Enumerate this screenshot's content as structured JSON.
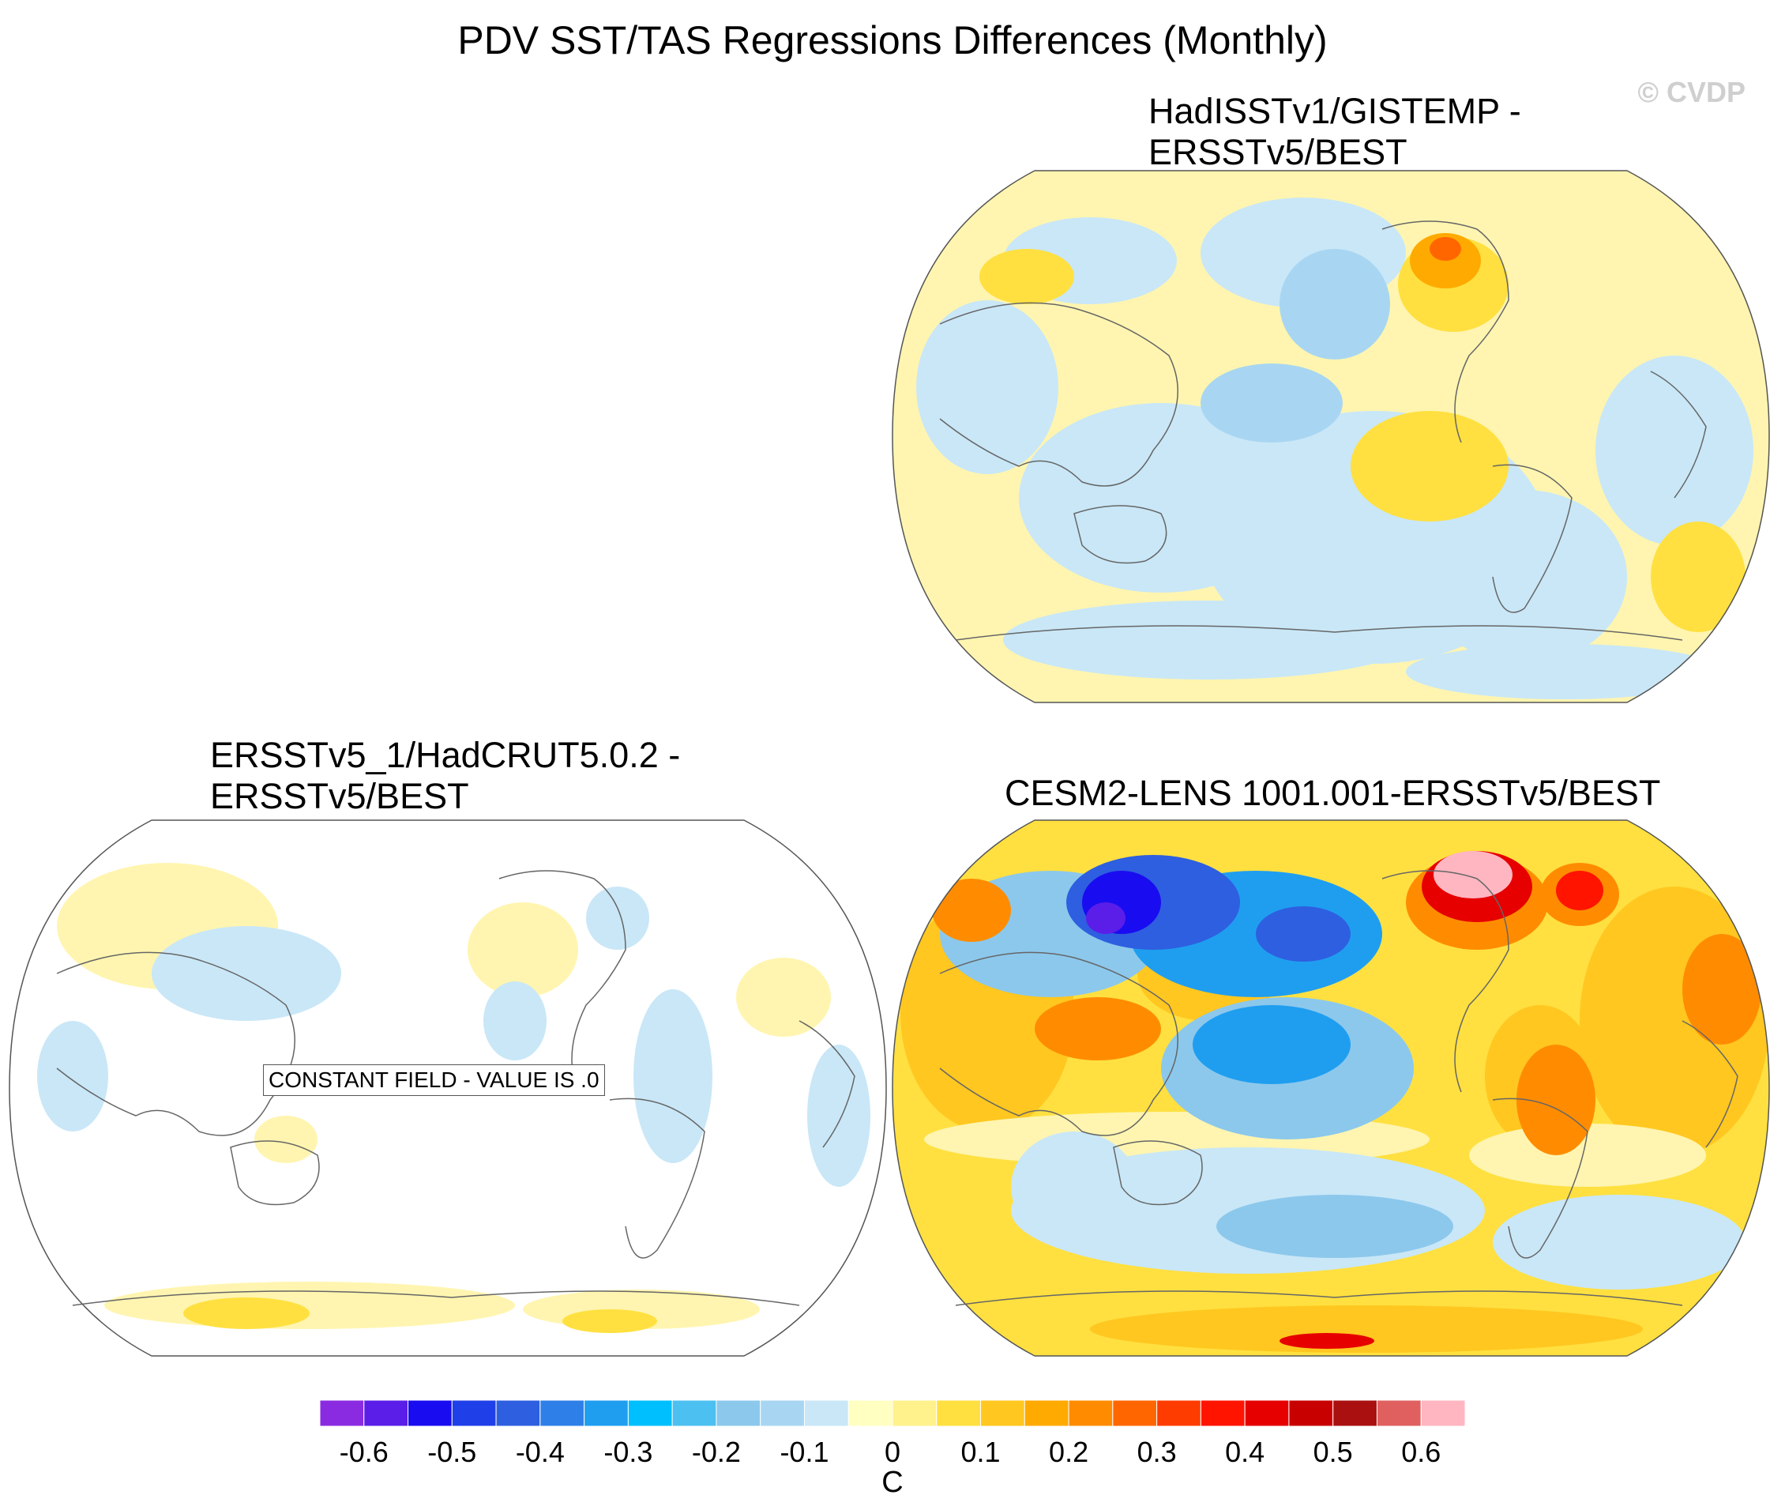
{
  "title": "PDV SST/TAS Regressions Differences (Monthly)",
  "watermark": "© CVDP",
  "panels": [
    {
      "id": "top-right",
      "title": "HadISSTv1/GISTEMP -\nERSSTv5/BEST",
      "style": "mixed-weak"
    },
    {
      "id": "bottom-left",
      "title": "ERSSTv5_1/HadCRUT5.0.2 -\nERSSTv5/BEST",
      "style": "sparse",
      "annotation": "CONSTANT FIELD - VALUE IS .0"
    },
    {
      "id": "bottom-right",
      "title": "CESM2-LENS 1001.001-ERSSTv5/BEST",
      "style": "strong"
    }
  ],
  "colorbar": {
    "unit": "C",
    "tick_labels": [
      "-0.6",
      "-0.5",
      "-0.4",
      "-0.3",
      "-0.2",
      "-0.1",
      "0",
      "0.1",
      "0.2",
      "0.3",
      "0.4",
      "0.5",
      "0.6"
    ],
    "colors": [
      "#8a2be2",
      "#5a1ee8",
      "#1a0cf0",
      "#1f3fe8",
      "#2e5fe0",
      "#2f7fe8",
      "#1f9ef0",
      "#00bfff",
      "#4cc0f0",
      "#8cc8ec",
      "#a8d6f2",
      "#c9e7f7",
      "#ffffc2",
      "#fff28c",
      "#ffe040",
      "#ffc720",
      "#ffaa00",
      "#ff8c00",
      "#ff6600",
      "#ff3c00",
      "#ff1400",
      "#e60000",
      "#c80000",
      "#aa1010",
      "#e06060",
      "#ffb6c1"
    ]
  }
}
